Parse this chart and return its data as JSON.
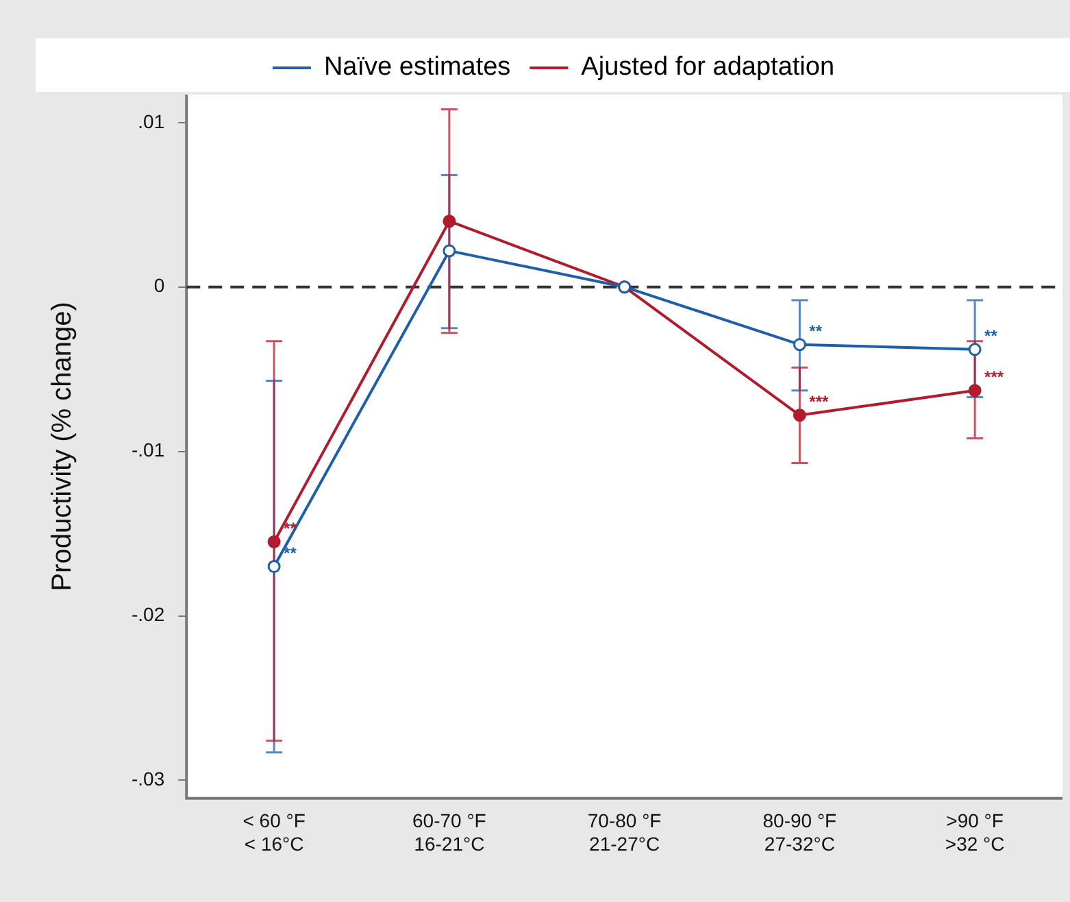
{
  "chart_data": {
    "type": "line",
    "ylabel": "Productivity (% change)",
    "categories": [
      "< 60 °F\n< 16°C",
      "60-70 °F\n16-21°C",
      "70-80 °F\n21-27°C",
      "80-90 °F\n27-32°C",
      ">90 °F\n>32 °C"
    ],
    "series": [
      {
        "name": "Naïve estimates",
        "color": "#1f5fa8",
        "values": [
          -0.017,
          0.0022,
          0,
          -0.0035,
          -0.0038
        ],
        "errors": [
          [
            -0.0283,
            -0.0057
          ],
          [
            -0.0025,
            0.0068
          ],
          null,
          [
            -0.0063,
            -0.0008
          ],
          [
            -0.0067,
            -0.0008
          ]
        ],
        "value_labels": [
          "**",
          null,
          null,
          "**",
          "**"
        ]
      },
      {
        "name": "Ajusted for adaptation",
        "color": "#b01c2e",
        "values": [
          -0.0155,
          0.004,
          0,
          -0.0078,
          -0.0063
        ],
        "errors": [
          [
            -0.0276,
            -0.0033
          ],
          [
            -0.0028,
            0.0108
          ],
          null,
          [
            -0.0107,
            -0.0049
          ],
          [
            -0.0092,
            -0.0033
          ]
        ],
        "value_labels": [
          "**",
          null,
          null,
          "***",
          "***"
        ]
      }
    ],
    "ylim": [
      -0.0311,
      0.0117
    ],
    "yticks": [
      {
        "value": 0.01,
        "label": ".01"
      },
      {
        "value": 0,
        "label": "0"
      },
      {
        "value": -0.01,
        "label": "-.01"
      },
      {
        "value": -0.02,
        "label": "-.02"
      },
      {
        "value": -0.03,
        "label": "-.03"
      }
    ],
    "ref_lines": [
      {
        "axis": "y",
        "value": 0,
        "color": "#333333",
        "line_style": "dashed"
      }
    ],
    "grid": false,
    "legend": "top",
    "marker": "circle",
    "line_style": "solid"
  }
}
